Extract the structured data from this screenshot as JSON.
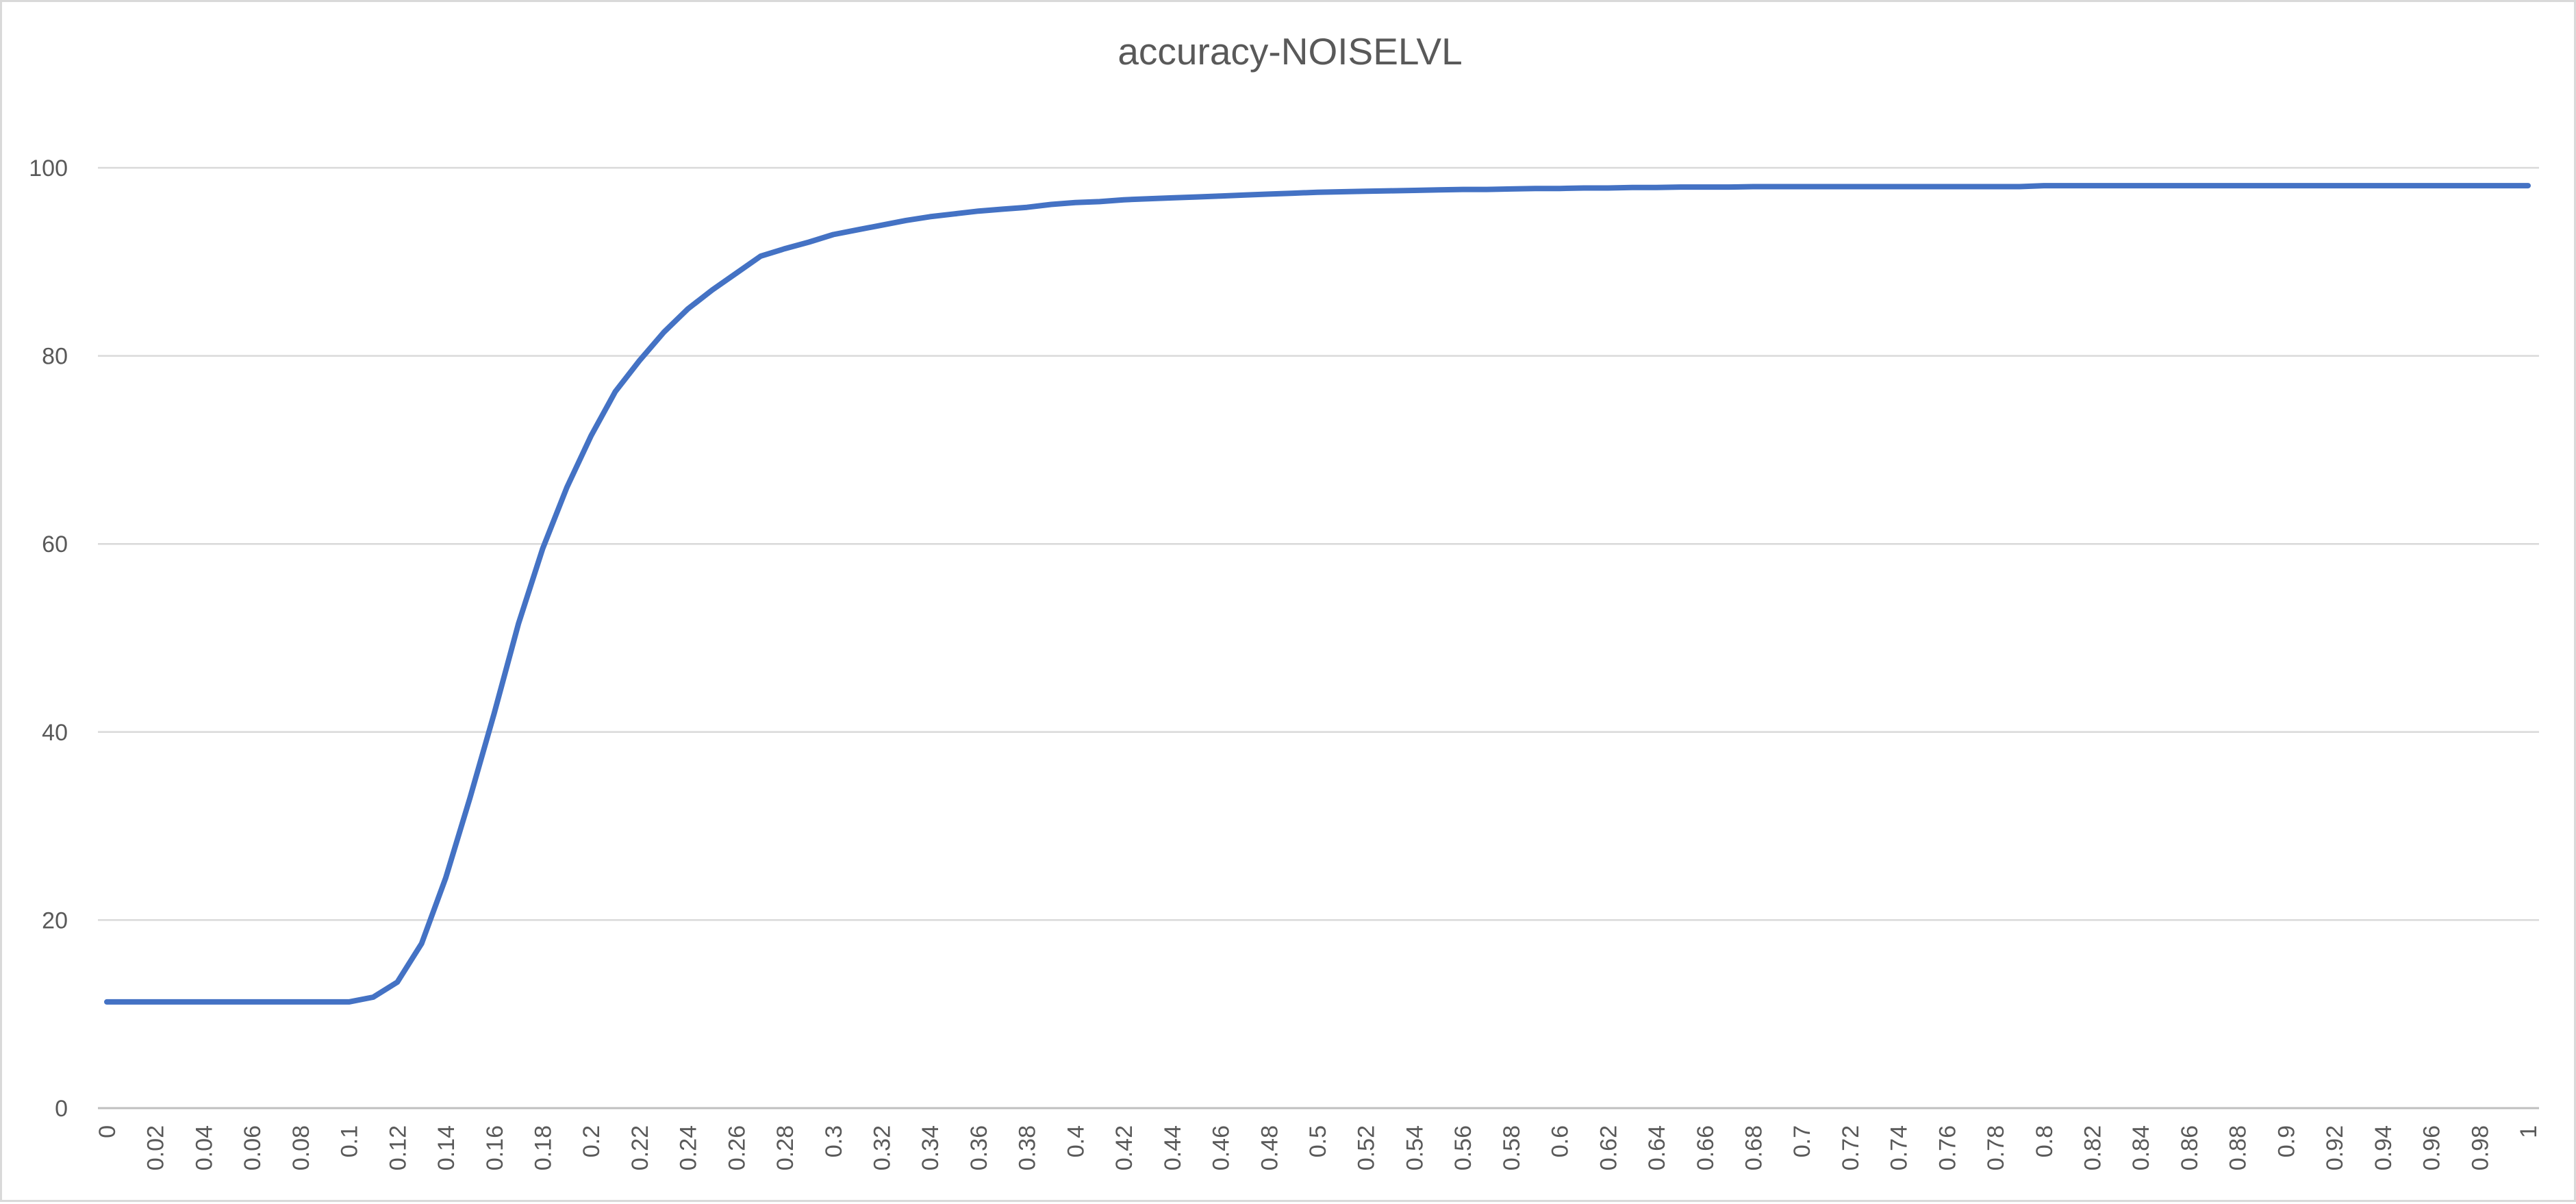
{
  "chart_data": {
    "type": "line",
    "title": "accuracy-NOISELVL",
    "xlabel": "",
    "ylabel": "",
    "x": [
      0,
      0.01,
      0.02,
      0.03,
      0.04,
      0.05,
      0.06,
      0.07,
      0.08,
      0.09,
      0.1,
      0.11,
      0.12,
      0.13,
      0.14,
      0.15,
      0.16,
      0.17,
      0.18,
      0.19,
      0.2,
      0.21,
      0.22,
      0.23,
      0.24,
      0.25,
      0.26,
      0.27,
      0.28,
      0.29,
      0.3,
      0.31,
      0.32,
      0.33,
      0.34,
      0.35,
      0.36,
      0.37,
      0.38,
      0.39,
      0.4,
      0.41,
      0.42,
      0.43,
      0.44,
      0.45,
      0.46,
      0.47,
      0.48,
      0.49,
      0.5,
      0.51,
      0.52,
      0.53,
      0.54,
      0.55,
      0.56,
      0.57,
      0.58,
      0.59,
      0.6,
      0.61,
      0.62,
      0.63,
      0.64,
      0.65,
      0.66,
      0.67,
      0.68,
      0.69,
      0.7,
      0.71,
      0.72,
      0.73,
      0.74,
      0.75,
      0.76,
      0.77,
      0.78,
      0.79,
      0.8,
      0.81,
      0.82,
      0.83,
      0.84,
      0.85,
      0.86,
      0.87,
      0.88,
      0.89,
      0.9,
      0.91,
      0.92,
      0.93,
      0.94,
      0.95,
      0.96,
      0.97,
      0.98,
      0.99,
      1
    ],
    "x_tick_labels": [
      "0",
      "0.02",
      "0.04",
      "0.06",
      "0.08",
      "0.1",
      "0.12",
      "0.14",
      "0.16",
      "0.18",
      "0.2",
      "0.22",
      "0.24",
      "0.26",
      "0.28",
      "0.3",
      "0.32",
      "0.34",
      "0.36",
      "0.38",
      "0.4",
      "0.42",
      "0.44",
      "0.46",
      "0.48",
      "0.5",
      "0.52",
      "0.54",
      "0.56",
      "0.58",
      "0.6",
      "0.62",
      "0.64",
      "0.66",
      "0.68",
      "0.7",
      "0.72",
      "0.74",
      "0.76",
      "0.78",
      "0.8",
      "0.82",
      "0.84",
      "0.86",
      "0.88",
      "0.9",
      "0.92",
      "0.94",
      "0.96",
      "0.98",
      "1"
    ],
    "y_tick_labels": [
      "0",
      "20",
      "40",
      "60",
      "80",
      "100"
    ],
    "ylim": [
      0,
      120
    ],
    "grid": true,
    "legend": "none",
    "series": [
      {
        "color": "#4472c4",
        "values": [
          11.3,
          11.3,
          11.3,
          11.3,
          11.3,
          11.3,
          11.3,
          11.3,
          11.3,
          11.3,
          11.3,
          11.8,
          13.4,
          17.5,
          24.5,
          33,
          42,
          51.5,
          59.5,
          66,
          71.5,
          76.2,
          79.5,
          82.5,
          85,
          87,
          88.8,
          90.6,
          91.4,
          92.1,
          92.9,
          93.4,
          93.9,
          94.4,
          94.8,
          95.1,
          95.4,
          95.6,
          95.8,
          96.1,
          96.3,
          96.4,
          96.6,
          96.7,
          96.8,
          96.9,
          97,
          97.1,
          97.2,
          97.3,
          97.4,
          97.45,
          97.5,
          97.55,
          97.6,
          97.65,
          97.7,
          97.7,
          97.75,
          97.8,
          97.8,
          97.85,
          97.85,
          97.9,
          97.9,
          97.95,
          97.95,
          97.95,
          98,
          98,
          98,
          98,
          98,
          98,
          98,
          98,
          98,
          98,
          98,
          98,
          98.1,
          98.1,
          98.1,
          98.1,
          98.1,
          98.1,
          98.1,
          98.1,
          98.1,
          98.1,
          98.1,
          98.1,
          98.1,
          98.1,
          98.1,
          98.1,
          98.1,
          98.1,
          98.1,
          98.1,
          98.1
        ]
      }
    ]
  }
}
